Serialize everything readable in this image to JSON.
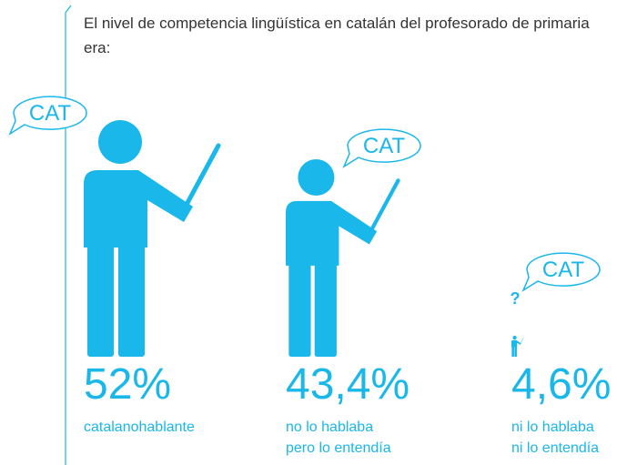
{
  "chart_data": {
    "type": "pictogram",
    "title": "El nivel de competencia lingüística en catalán del profesorado de primaria era:",
    "categories": [
      "catalanohablante",
      "no lo hablaba\npero lo entendía",
      "ni lo hablaba\nni lo entendía"
    ],
    "values": [
      52,
      43.4,
      4.6
    ],
    "value_labels": [
      "52%",
      "43,4%",
      "4,6%"
    ],
    "bubble_label": "CAT",
    "question_mark": "?",
    "color": "#1ab7ea"
  }
}
